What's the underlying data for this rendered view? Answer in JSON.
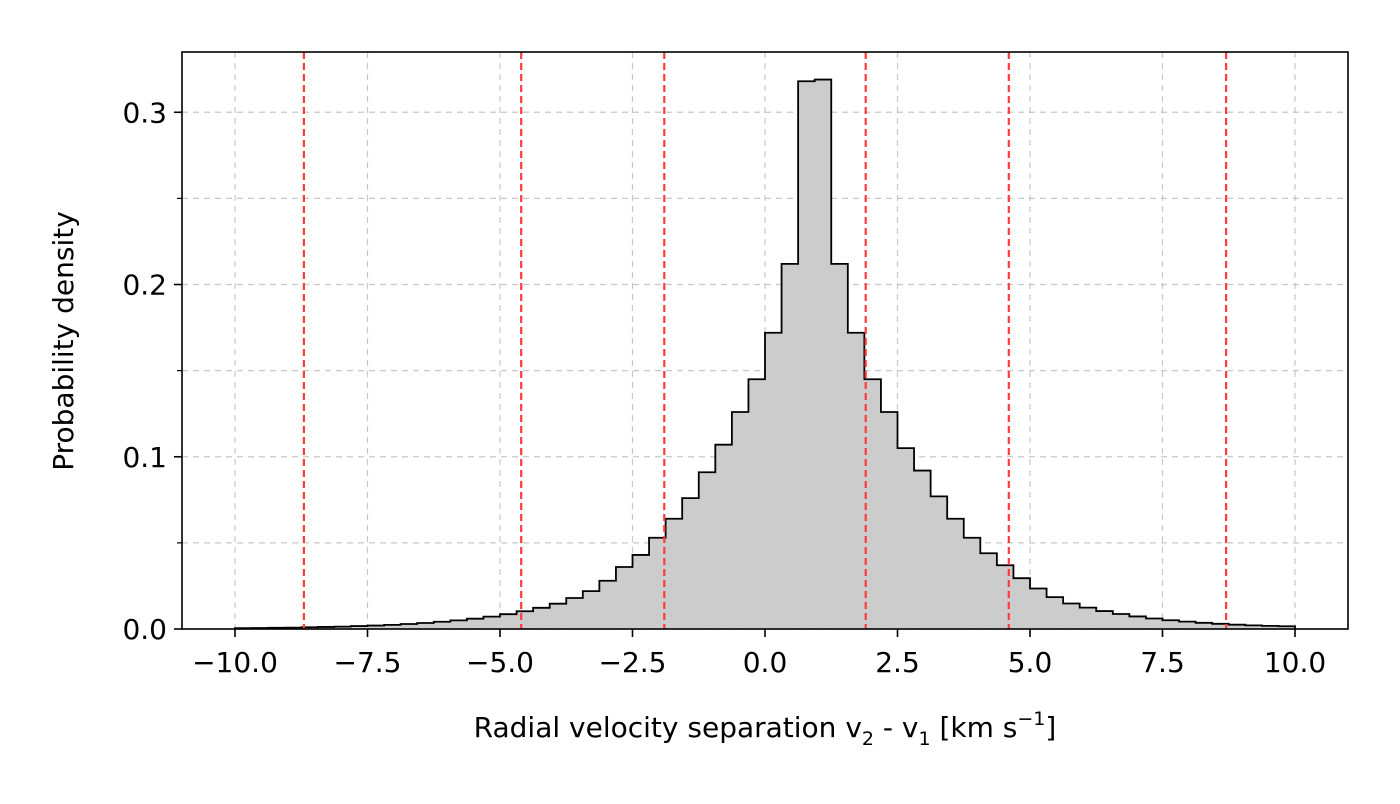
{
  "chart_data": {
    "type": "histogram",
    "title": "",
    "xlabel": {
      "main": "Radial velocity separation v",
      "sub1": "2",
      "mid": " - v",
      "sub2": "1",
      "unit_open": " [km s",
      "sup": "−1",
      "unit_close": "]"
    },
    "ylabel": "Probability density",
    "xlim": [
      -11,
      11
    ],
    "ylim": [
      0,
      0.335
    ],
    "x_ticks": [
      {
        "value": -10.0,
        "label": "−10.0"
      },
      {
        "value": -7.5,
        "label": "−7.5"
      },
      {
        "value": -5.0,
        "label": "−5.0"
      },
      {
        "value": -2.5,
        "label": "−2.5"
      },
      {
        "value": 0.0,
        "label": "0.0"
      },
      {
        "value": 2.5,
        "label": "2.5"
      },
      {
        "value": 5.0,
        "label": "5.0"
      },
      {
        "value": 7.5,
        "label": "7.5"
      },
      {
        "value": 10.0,
        "label": "10.0"
      }
    ],
    "y_ticks": [
      {
        "value": 0.0,
        "label": "0.0"
      },
      {
        "value": 0.1,
        "label": "0.1"
      },
      {
        "value": 0.2,
        "label": "0.2"
      },
      {
        "value": 0.3,
        "label": "0.3"
      }
    ],
    "y_minor_ticks": [
      0.05,
      0.15,
      0.25
    ],
    "grid": true,
    "bin_start": -10,
    "bin_width": 0.3125,
    "values": [
      0.0005,
      0.0006,
      0.0007,
      0.0008,
      0.001,
      0.0012,
      0.0014,
      0.0017,
      0.002,
      0.0024,
      0.0029,
      0.0035,
      0.0042,
      0.005,
      0.006,
      0.0072,
      0.0086,
      0.0103,
      0.0123,
      0.0147,
      0.018,
      0.022,
      0.028,
      0.036,
      0.043,
      0.053,
      0.064,
      0.076,
      0.091,
      0.107,
      0.126,
      0.145,
      0.172,
      0.212,
      0.318,
      0.319,
      0.212,
      0.172,
      0.145,
      0.126,
      0.105,
      0.092,
      0.077,
      0.064,
      0.053,
      0.044,
      0.037,
      0.0295,
      0.0235,
      0.0185,
      0.0148,
      0.0124,
      0.0104,
      0.0087,
      0.0073,
      0.0061,
      0.0051,
      0.0043,
      0.0036,
      0.003,
      0.0025,
      0.0021,
      0.0018,
      0.0016
    ],
    "vlines": [
      -8.7,
      -4.6,
      -1.9,
      1.9,
      4.6,
      8.7
    ],
    "colors": {
      "bar_fill": "#cccccc",
      "bar_edge": "#000000",
      "vline": "#ff3b3b",
      "grid": "#b0b0b0"
    }
  }
}
